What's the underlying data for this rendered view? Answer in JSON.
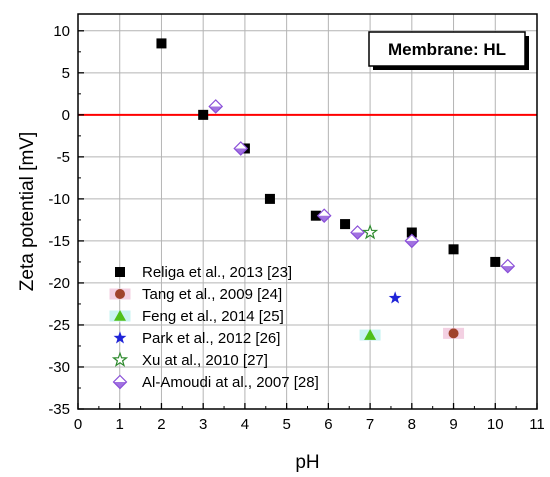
{
  "chart_data": {
    "type": "scatter",
    "xlabel": "pH",
    "ylabel": "Zeta potential [mV]",
    "xlim": [
      0,
      11
    ],
    "ylim": [
      -35,
      12
    ],
    "xticks": [
      "0",
      "1",
      "2",
      "3",
      "4",
      "5",
      "6",
      "7",
      "8",
      "9",
      "10",
      "11"
    ],
    "yticks": [
      "10",
      "5",
      "0",
      "-5",
      "-10",
      "-15",
      "-20",
      "-25",
      "-30",
      "-35"
    ],
    "grid": true,
    "annotation": "Membrane: HL",
    "reference_line": {
      "y": 0,
      "color": "#ff0000"
    },
    "legend_position": "bottom-left",
    "series": [
      {
        "name": "Religa et al., 2013 [23]",
        "marker": "square",
        "color": "#000000",
        "points": [
          [
            2.0,
            8.5
          ],
          [
            3.0,
            0.0
          ],
          [
            4.0,
            -4.0
          ],
          [
            4.6,
            -10.0
          ],
          [
            5.7,
            -12.0
          ],
          [
            6.4,
            -13.0
          ],
          [
            8.0,
            -14.0
          ],
          [
            9.0,
            -16.0
          ],
          [
            10.0,
            -17.5
          ]
        ]
      },
      {
        "name": "Tang et al., 2009 [24]",
        "marker": "circle",
        "color": "#a0432c",
        "highlight": "#f3d0e2",
        "points": [
          [
            9.0,
            -26.0
          ]
        ]
      },
      {
        "name": "Feng et al., 2014 [25]",
        "marker": "triangle",
        "color": "#4fbf19",
        "highlight": "#c9f3f1",
        "points": [
          [
            7.0,
            -26.2
          ]
        ]
      },
      {
        "name": "Park et al., 2012 [26]",
        "marker": "star",
        "color": "#1f24d8",
        "points": [
          [
            7.6,
            -21.8
          ]
        ]
      },
      {
        "name": "Xu at al., 2010 [27]",
        "marker": "star-open",
        "color": "#2e8a2e",
        "points": [
          [
            7.0,
            -14.0
          ]
        ]
      },
      {
        "name": "Al-Amoudi at al., 2007 [28]",
        "marker": "diamond-half",
        "color": "#8a4fd8",
        "points": [
          [
            3.3,
            1.0
          ],
          [
            3.9,
            -4.0
          ],
          [
            5.9,
            -12.0
          ],
          [
            6.7,
            -14.0
          ],
          [
            8.0,
            -15.0
          ],
          [
            10.3,
            -18.0
          ]
        ]
      }
    ]
  }
}
